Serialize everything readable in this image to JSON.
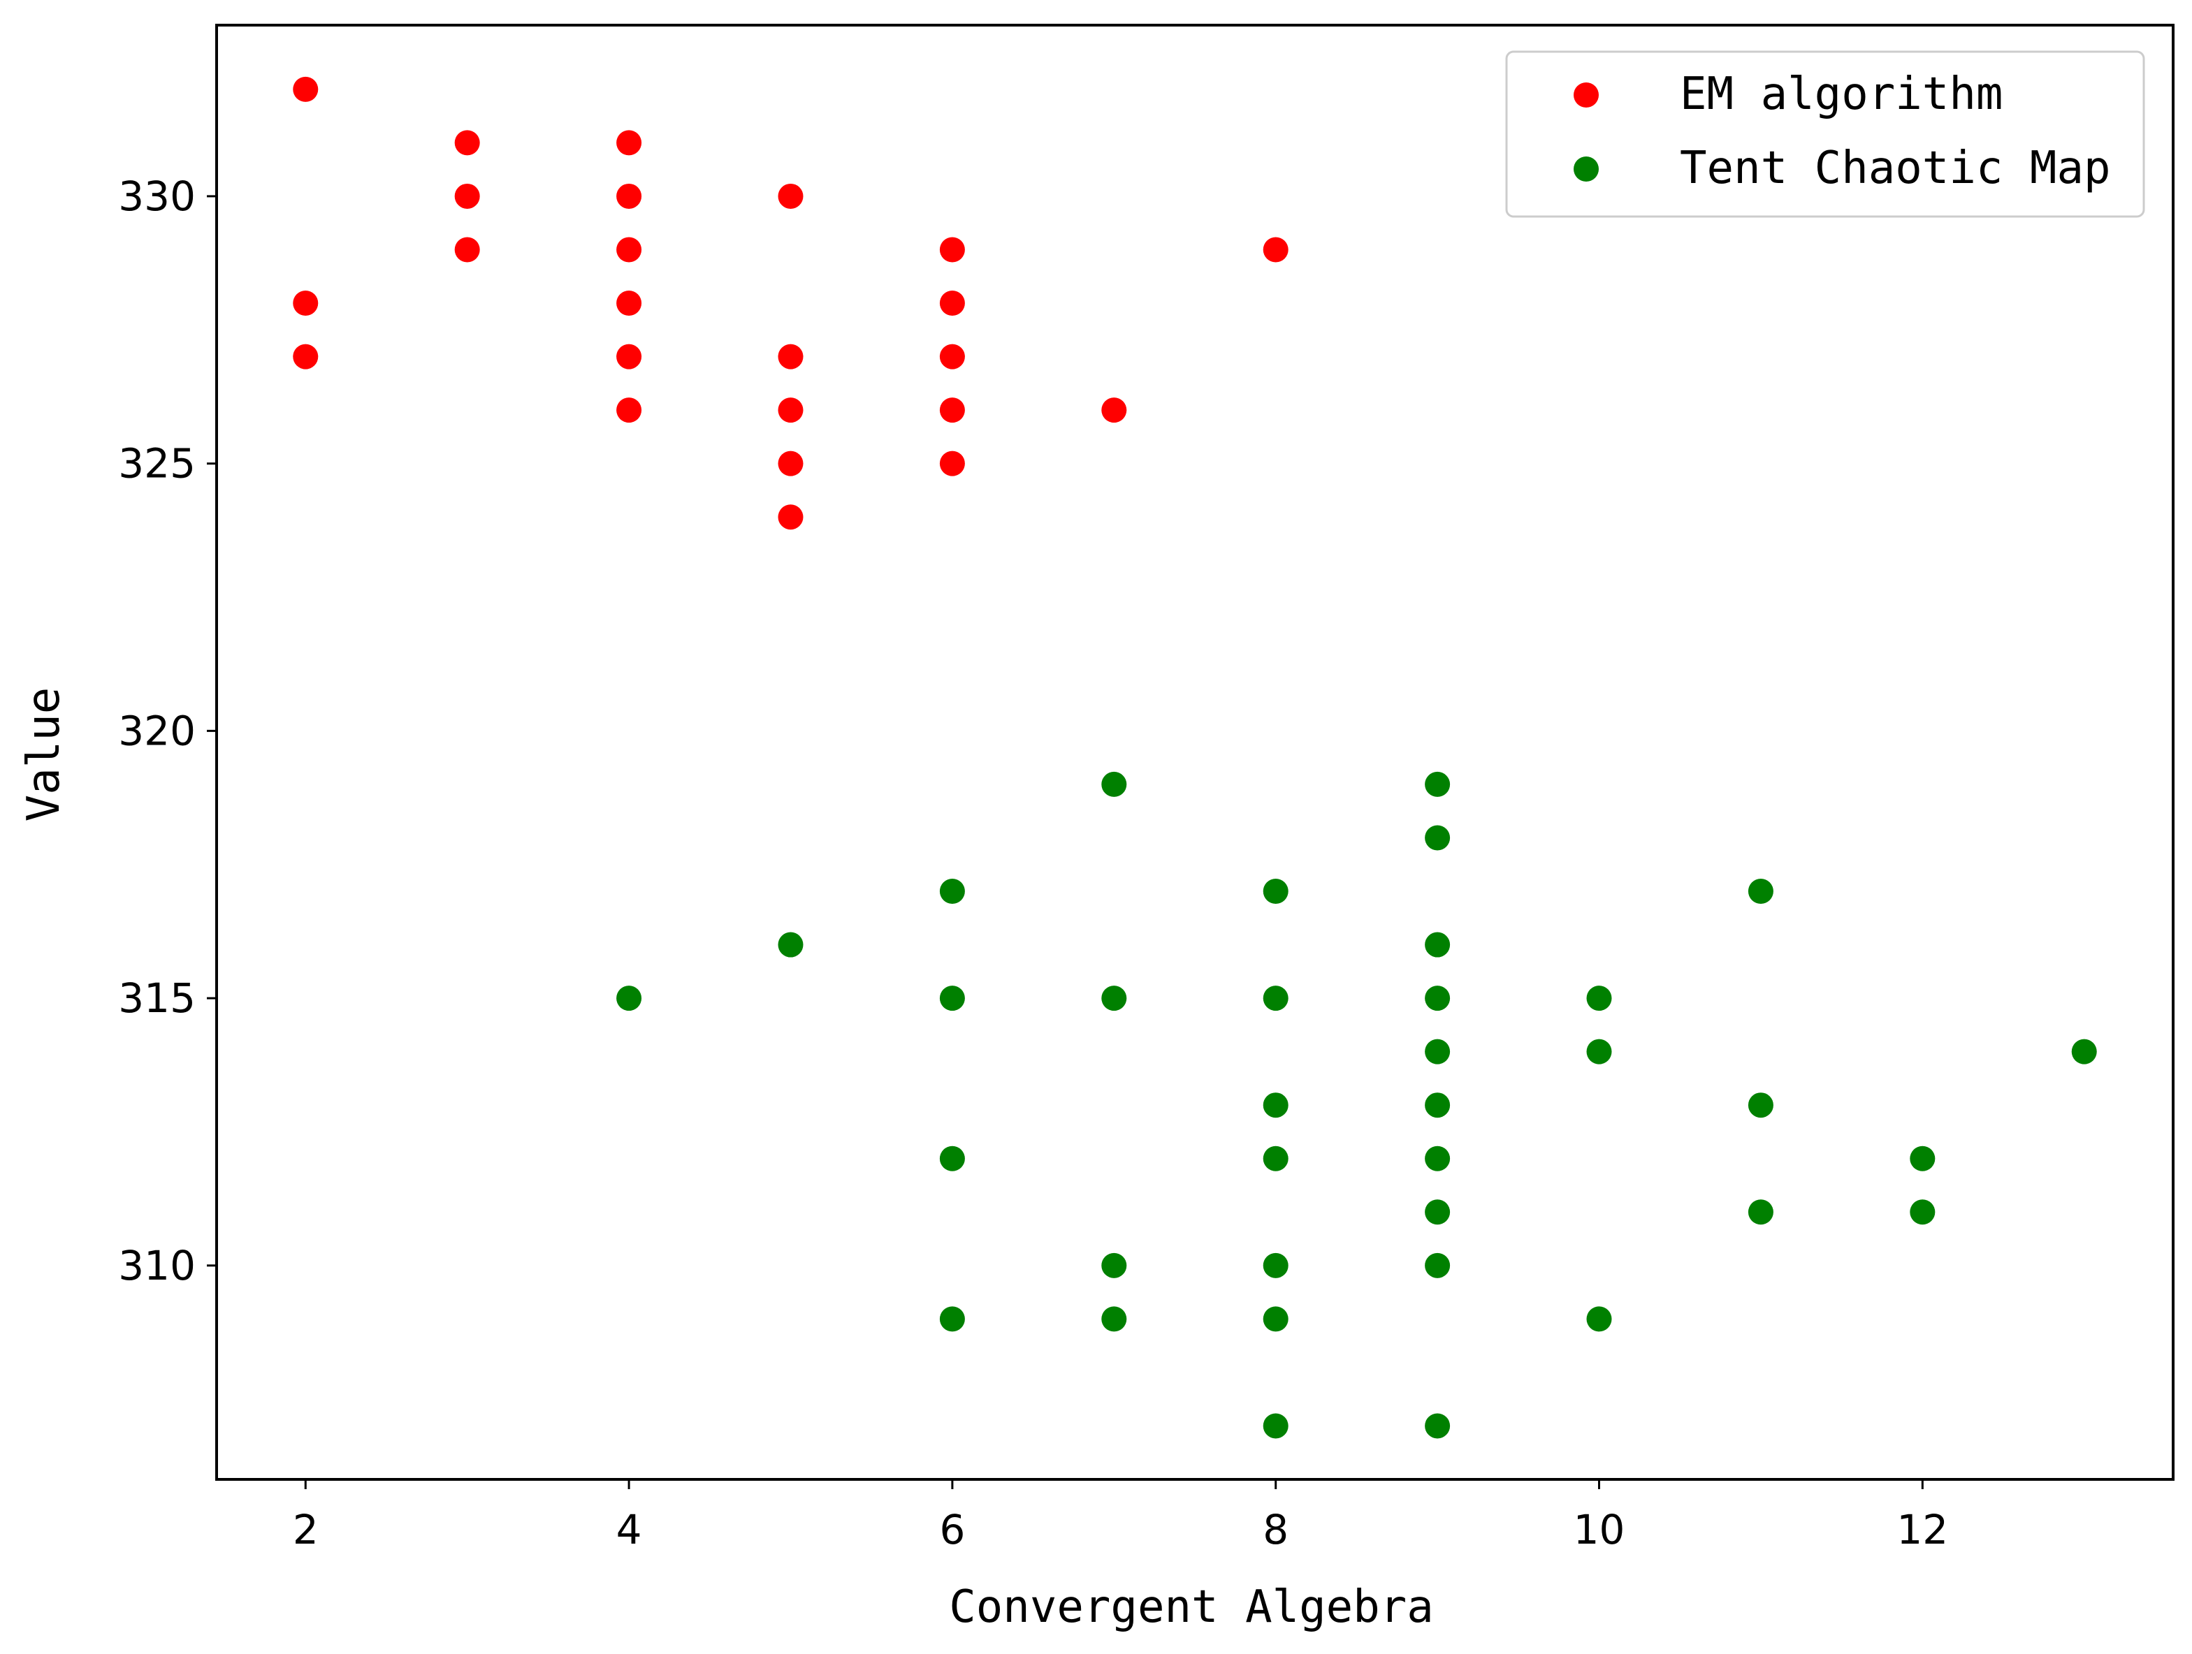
{
  "chart_data": {
    "type": "scatter",
    "title": "",
    "xlabel": "Convergent Algebra",
    "ylabel": "Value",
    "xlim": [
      1.45,
      13.55
    ],
    "ylim": [
      306,
      333.2
    ],
    "xticks": [
      2,
      4,
      6,
      8,
      10,
      12
    ],
    "yticks": [
      310,
      315,
      320,
      325,
      330
    ],
    "grid": false,
    "legend_position": "top-right",
    "series": [
      {
        "name": "EM algorithm",
        "color": "#ff0000",
        "points": [
          [
            2,
            332
          ],
          [
            2,
            328
          ],
          [
            2,
            327
          ],
          [
            3,
            331
          ],
          [
            3,
            330
          ],
          [
            3,
            329
          ],
          [
            4,
            331
          ],
          [
            4,
            330
          ],
          [
            4,
            329
          ],
          [
            4,
            328
          ],
          [
            4,
            327
          ],
          [
            4,
            326
          ],
          [
            5,
            330
          ],
          [
            5,
            327
          ],
          [
            5,
            326
          ],
          [
            5,
            325
          ],
          [
            5,
            324
          ],
          [
            6,
            329
          ],
          [
            6,
            328
          ],
          [
            6,
            327
          ],
          [
            6,
            326
          ],
          [
            6,
            325
          ],
          [
            7,
            326
          ],
          [
            8,
            329
          ]
        ]
      },
      {
        "name": "Tent Chaotic Map",
        "color": "#008000",
        "points": [
          [
            4,
            315
          ],
          [
            5,
            316
          ],
          [
            6,
            317
          ],
          [
            6,
            315
          ],
          [
            6,
            312
          ],
          [
            6,
            309
          ],
          [
            7,
            319
          ],
          [
            7,
            315
          ],
          [
            7,
            310
          ],
          [
            7,
            309
          ],
          [
            8,
            317
          ],
          [
            8,
            315
          ],
          [
            8,
            313
          ],
          [
            8,
            312
          ],
          [
            8,
            310
          ],
          [
            8,
            309
          ],
          [
            8,
            307
          ],
          [
            9,
            319
          ],
          [
            9,
            318
          ],
          [
            9,
            316
          ],
          [
            9,
            315
          ],
          [
            9,
            314
          ],
          [
            9,
            313
          ],
          [
            9,
            312
          ],
          [
            9,
            311
          ],
          [
            9,
            310
          ],
          [
            9,
            307
          ],
          [
            10,
            315
          ],
          [
            10,
            314
          ],
          [
            10,
            309
          ],
          [
            11,
            317
          ],
          [
            11,
            313
          ],
          [
            11,
            311
          ],
          [
            12,
            312
          ],
          [
            12,
            311
          ],
          [
            13,
            314
          ]
        ]
      }
    ]
  }
}
